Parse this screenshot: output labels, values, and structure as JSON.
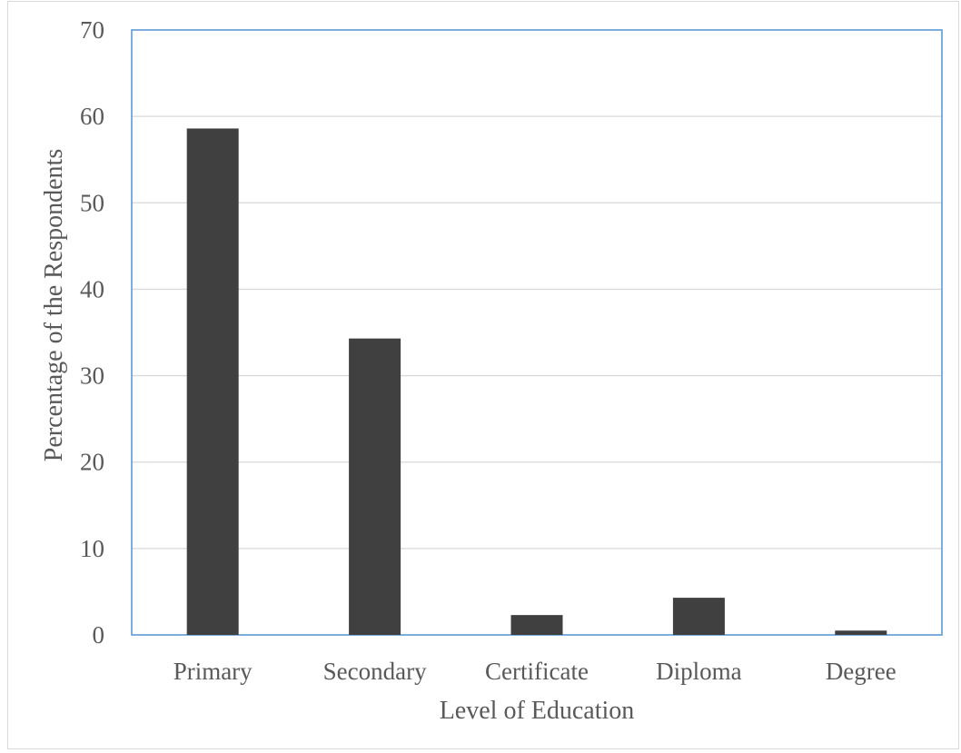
{
  "chart_data": {
    "type": "bar",
    "categories": [
      "Primary",
      "Secondary",
      "Certificate",
      "Diploma",
      "Degree"
    ],
    "values": [
      58.6,
      34.3,
      2.3,
      4.3,
      0.5
    ],
    "xlabel": "Level of Education",
    "ylabel": "Percentage of the Respondents",
    "ylim": [
      0,
      70
    ],
    "yticks": [
      "0",
      "10",
      "20",
      "30",
      "40",
      "50",
      "60",
      "70"
    ],
    "grid": true,
    "legend": "none",
    "colors": {
      "bar": "#404040",
      "gridline": "#d9d9d9",
      "plot_border": "#5b9bd5",
      "text": "#595959"
    }
  }
}
